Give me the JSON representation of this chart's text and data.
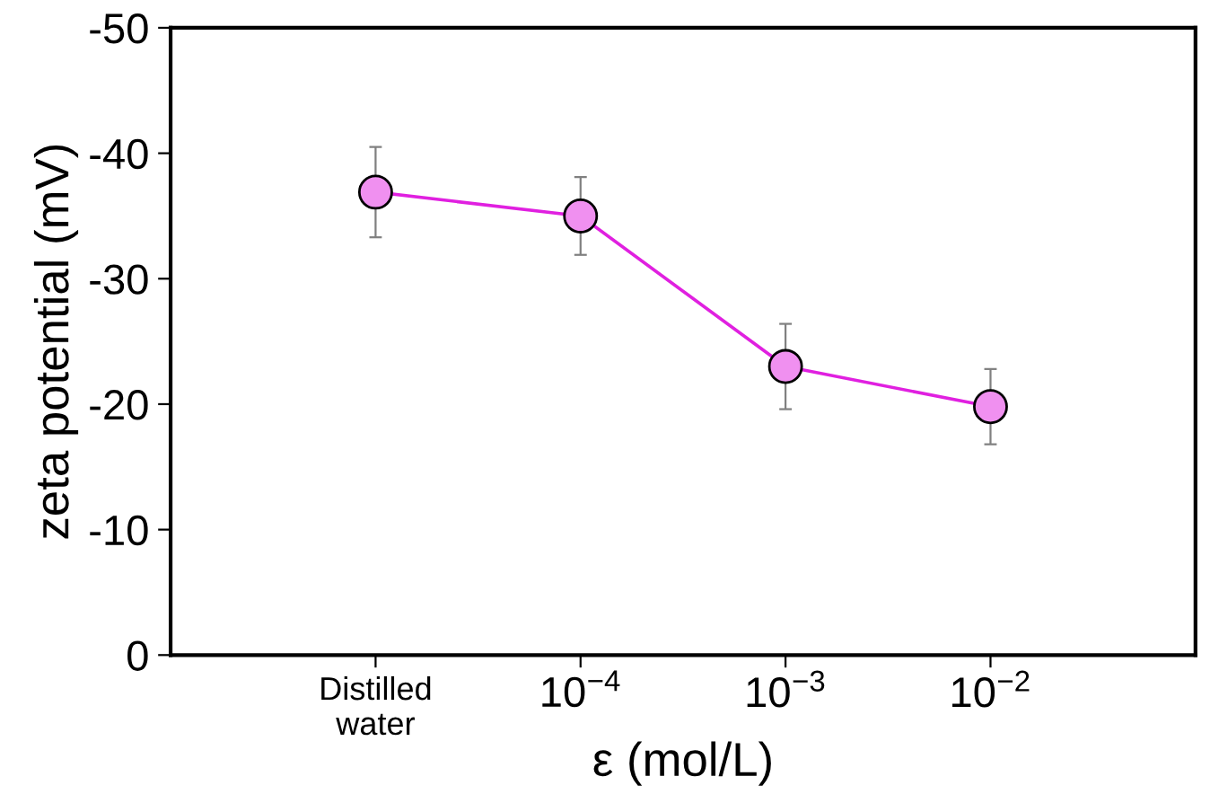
{
  "chart_data": {
    "type": "line",
    "xlabel": "ε (mol/L)",
    "ylabel": "zeta potential (mV)",
    "categories": [
      "Distilled\nwater",
      "10$^{−4}$",
      "10$^{−3}$",
      "10$^{−2}$"
    ],
    "series": [
      {
        "color": "#e020e0",
        "values": [
          -36.9,
          -35.0,
          -23.0,
          -19.8
        ],
        "errors": [
          3.6,
          3.1,
          3.4,
          3.0
        ]
      }
    ],
    "ylim": [
      0,
      -50
    ],
    "yticks": [
      0,
      -10,
      -20,
      -30,
      -40,
      -50
    ],
    "marker": "circle",
    "line_style": "solid"
  }
}
